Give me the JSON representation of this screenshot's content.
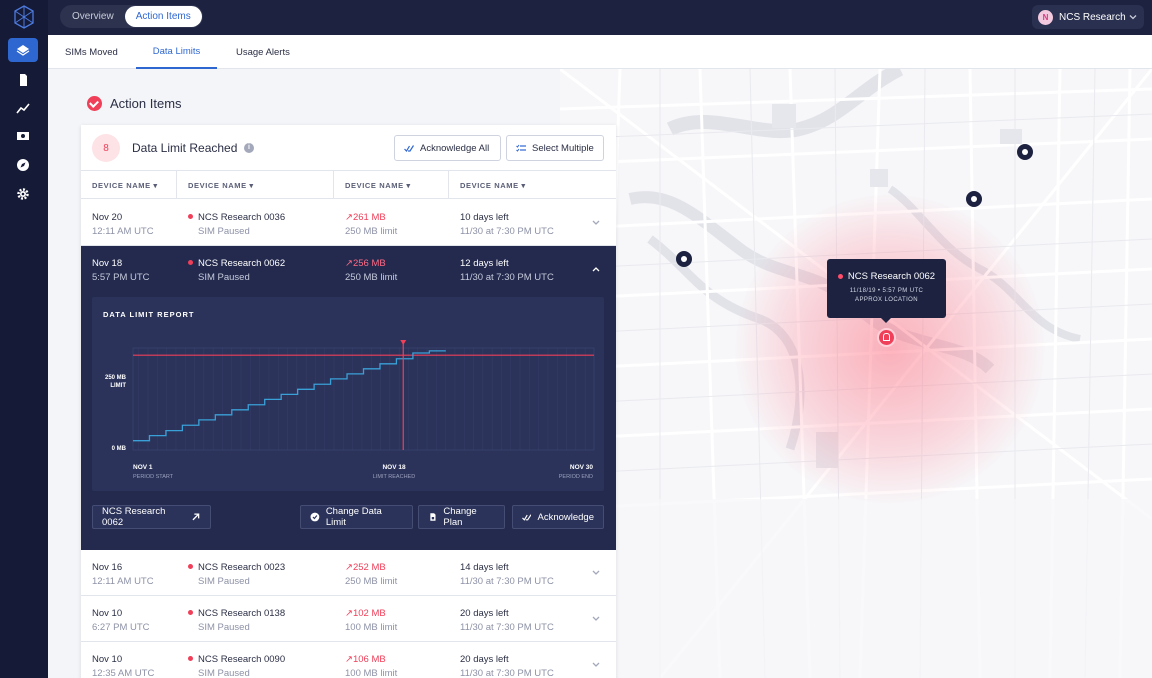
{
  "sidebar": {
    "logo": "hexagon-logo-icon",
    "items": [
      {
        "icon": "layers-icon",
        "active": true
      },
      {
        "icon": "sim-card-icon",
        "active": false
      },
      {
        "icon": "chart-line-icon",
        "active": false
      },
      {
        "icon": "billing-icon",
        "active": false
      },
      {
        "icon": "compass-icon",
        "active": false
      },
      {
        "icon": "gear-icon",
        "active": false
      }
    ]
  },
  "topbar": {
    "tabs": [
      "Overview",
      "Action Items"
    ],
    "active_tab": "Action Items",
    "account_initial": "N",
    "account_name": "NCS Research"
  },
  "subtabs": [
    "SIMs Moved",
    "Data Limits",
    "Usage Alerts"
  ],
  "page": {
    "title": "Action Items",
    "panel_count": "8",
    "panel_title": "Data Limit Reached",
    "acknowledge_all": "Acknowledge All",
    "select_multiple": "Select Multiple",
    "columns": [
      "DEVICE NAME ▾",
      "DEVICE NAME ▾",
      "DEVICE NAME ▾",
      "DEVICE NAME ▾"
    ]
  },
  "rows": [
    {
      "date": "Nov 20",
      "time": "12:11 AM UTC",
      "device": "NCS Research 0036",
      "status": "SIM Paused",
      "usage": "261 MB",
      "limit": "250 MB limit",
      "days": "10 days left",
      "until": "11/30 at 7:30 PM UTC"
    },
    {
      "date": "Nov 18",
      "time": "5:57 PM UTC",
      "device": "NCS Research 0062",
      "status": "SIM Paused",
      "usage": "256 MB",
      "limit": "250 MB limit",
      "days": "12 days left",
      "until": "11/30 at 7:30 PM UTC"
    },
    {
      "date": "Nov 16",
      "time": "12:11 AM UTC",
      "device": "NCS Research 0023",
      "status": "SIM Paused",
      "usage": "252 MB",
      "limit": "250 MB limit",
      "days": "14 days left",
      "until": "11/30 at 7:30 PM UTC"
    },
    {
      "date": "Nov 10",
      "time": "6:27 PM UTC",
      "device": "NCS Research 0138",
      "status": "SIM Paused",
      "usage": "102 MB",
      "limit": "100 MB limit",
      "days": "20 days left",
      "until": "11/30 at 7:30 PM UTC"
    },
    {
      "date": "Nov 10",
      "time": "12:35 AM UTC",
      "device": "NCS Research 0090",
      "status": "SIM Paused",
      "usage": "106 MB",
      "limit": "100 MB limit",
      "days": "20 days left",
      "until": "11/30 at 7:30 PM UTC"
    }
  ],
  "report": {
    "title": "DATA LIMIT REPORT",
    "y_top_label_1": "250 MB",
    "y_top_label_2": "LIMIT",
    "y_bottom_label": "0 MB",
    "x_start": "NOV 1",
    "x_start_sub": "PERIOD START",
    "x_mid": "NOV 18",
    "x_mid_sub": "LIMIT REACHED",
    "x_end": "NOV 30",
    "x_end_sub": "PERIOD END",
    "device_button": "NCS Research 0062",
    "change_limit": "Change Data Limit",
    "change_plan": "Change Plan",
    "acknowledge": "Acknowledge"
  },
  "chart_data": {
    "type": "line",
    "title": "DATA LIMIT REPORT",
    "xlabel": "",
    "ylabel": "",
    "x_start_day": 1,
    "x_end_day": 30,
    "limit_day": 18,
    "limit_mb": 250,
    "ylim": [
      0,
      270
    ],
    "series": [
      {
        "values": [
          12,
          26,
          40,
          55,
          70,
          84,
          98,
          112,
          127,
          141,
          155,
          169,
          184,
          198,
          212,
          226,
          240,
          256,
          262
        ]
      }
    ]
  },
  "map": {
    "tooltip_name": "NCS Research 0062",
    "tooltip_line1": "11/18/19 • 5:57 PM UTC",
    "tooltip_line2": "APPROX LOCATION"
  },
  "colors": {
    "accent": "#2f67d1",
    "alert": "#ef3f59",
    "navy": "#1c2240"
  }
}
